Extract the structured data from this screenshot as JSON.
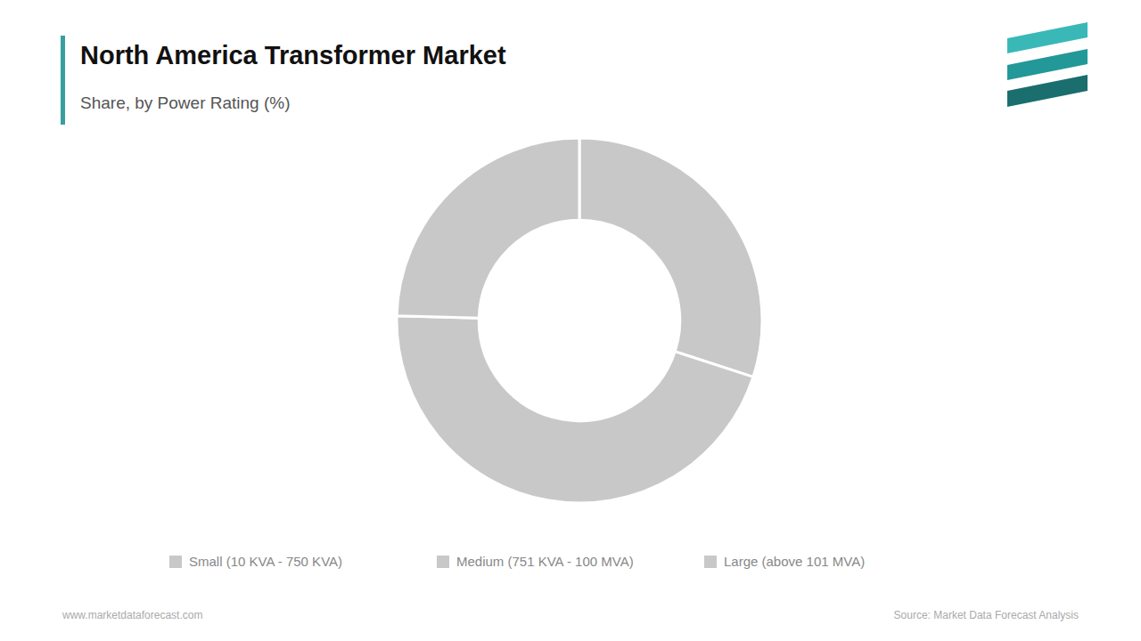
{
  "chart_data": {
    "type": "donut",
    "title": "North America Transformer Market",
    "subtitle": "Share, by Power Rating (%)",
    "categories": [
      "Small (10 KVA - 750 KVA)",
      "Medium (751 KVA - 100 MVA)",
      "Large (above 101 MVA)"
    ],
    "values": [
      30.0,
      45.4,
      24.6
    ],
    "colors": [
      "#c8c8c8",
      "#c8c8c8",
      "#c8c8c8"
    ],
    "legend": "bottom",
    "annotations": [
      "www.marketdataforecast.com",
      "Source: Market Data Forecast Analysis"
    ]
  }
}
